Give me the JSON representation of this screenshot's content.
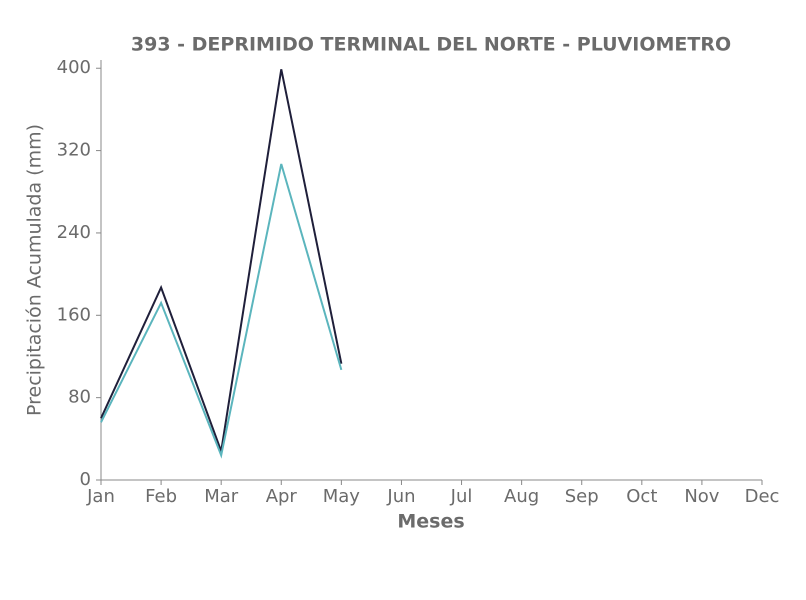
{
  "chart_data": {
    "type": "line",
    "title": "393 - DEPRIMIDO TERMINAL DEL NORTE - PLUVIOMETRO",
    "x_label": "Meses",
    "y_label": "Precipitación Acumulada (mm)",
    "categories": [
      "Jan",
      "Feb",
      "Mar",
      "Apr",
      "May",
      "Jun",
      "Jul",
      "Aug",
      "Sep",
      "Oct",
      "Nov",
      "Dec"
    ],
    "series": [
      {
        "color": "#1f1f3a",
        "values": [
          60,
          187,
          28,
          399,
          113,
          null,
          null,
          null,
          null,
          null,
          null,
          null
        ]
      },
      {
        "color": "#5bb5bd",
        "values": [
          56,
          172,
          24,
          307,
          107,
          null,
          null,
          null,
          null,
          null,
          null,
          null
        ]
      }
    ],
    "ylim": [
      0,
      408
    ],
    "yticks": [
      0,
      80,
      160,
      240,
      320,
      400
    ],
    "grid": false
  }
}
